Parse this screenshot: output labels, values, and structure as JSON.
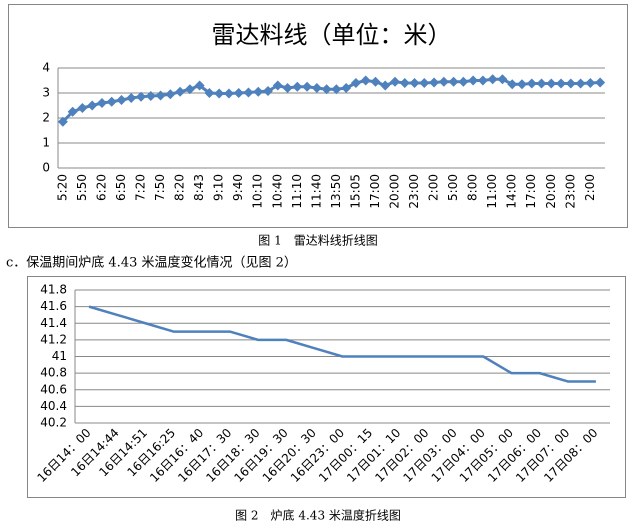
{
  "chart_data": [
    {
      "type": "line",
      "title": "雷达料线（单位：米）",
      "categories": [
        "5:20",
        null,
        "5:50",
        null,
        "6:20",
        null,
        "6:50",
        null,
        "7:20",
        null,
        "7:50",
        null,
        "8:20",
        null,
        "8:43",
        null,
        "9:10",
        null,
        "9:40",
        null,
        "10:10",
        null,
        "10:40",
        null,
        "11:10",
        null,
        "11:40",
        null,
        "13:50",
        null,
        "15:05",
        null,
        "17:00",
        null,
        "20:00",
        null,
        "23:00",
        null,
        "2:00",
        null,
        "5:00",
        null,
        "8:00",
        null,
        "11:00",
        null,
        "14:00",
        null,
        "17:00",
        null,
        "20:00",
        null,
        "23:00",
        null,
        "2:00",
        null
      ],
      "values": [
        1.85,
        2.25,
        2.4,
        2.5,
        2.6,
        2.65,
        2.72,
        2.8,
        2.85,
        2.88,
        2.9,
        2.95,
        3.05,
        3.15,
        3.3,
        3.0,
        2.98,
        2.98,
        3.0,
        3.02,
        3.05,
        3.08,
        3.3,
        3.2,
        3.25,
        3.25,
        3.2,
        3.15,
        3.15,
        3.2,
        3.4,
        3.5,
        3.45,
        3.3,
        3.45,
        3.4,
        3.4,
        3.4,
        3.42,
        3.45,
        3.45,
        3.45,
        3.5,
        3.5,
        3.55,
        3.55,
        3.35,
        3.35,
        3.38,
        3.38,
        3.38,
        3.38,
        3.38,
        3.38,
        3.4,
        3.42
      ],
      "color": "#4f81bd",
      "marker": "diamond",
      "ylim": [
        0,
        4
      ],
      "yticks": [
        0,
        1,
        2,
        3,
        4
      ],
      "grid": true
    },
    {
      "type": "line",
      "categories": [
        "16日14：00",
        "16日14:44",
        "16日14:51",
        "16日16:25",
        "16日16：40",
        "16日17：30",
        "16日18：30",
        "16日19：30",
        "16日20：30",
        "16日23：00",
        "17日00：15",
        "17日01：10",
        "17日02：00",
        "17日03：00",
        "17日04：00",
        "17日05：00",
        "17日06：00",
        "17日07：00",
        "17日08：00"
      ],
      "values": [
        41.6,
        41.5,
        41.4,
        41.3,
        41.3,
        41.3,
        41.2,
        41.2,
        41.1,
        41.0,
        41.0,
        41.0,
        41.0,
        41.0,
        41.0,
        40.8,
        40.8,
        40.7,
        40.7
      ],
      "color": "#4f81bd",
      "ylim": [
        40.2,
        41.8
      ],
      "yticks": [
        40.2,
        40.4,
        40.6,
        40.8,
        41,
        41.2,
        41.4,
        41.6,
        41.8
      ],
      "grid": true
    }
  ],
  "captions": [
    "图 1　雷达料线折线图",
    "图 2　炉底 4.43 米温度折线图"
  ],
  "paragraph": "c．保温期间炉底 4.43 米温度变化情况（见图 2）"
}
